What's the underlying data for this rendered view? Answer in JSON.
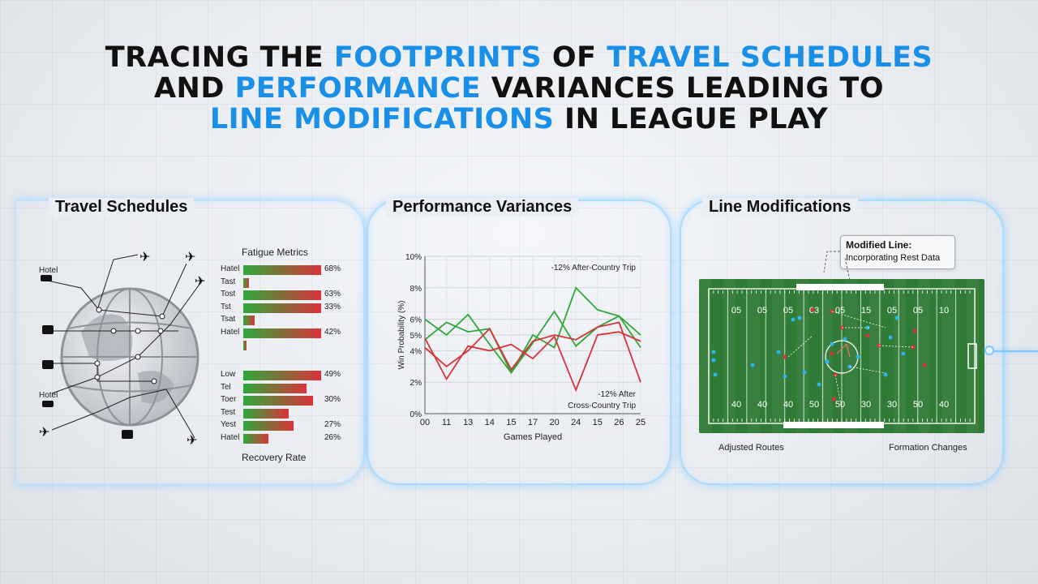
{
  "title": {
    "line1": [
      {
        "t": "TRACING THE ",
        "hl": false
      },
      {
        "t": "FOOTPRINTS",
        "hl": true
      },
      {
        "t": " OF ",
        "hl": false
      },
      {
        "t": "TRAVEL SCHEDULES",
        "hl": true
      }
    ],
    "line2": [
      {
        "t": "AND ",
        "hl": false
      },
      {
        "t": "PERFORMANCE",
        "hl": true
      },
      {
        "t": " VARIANCES LEADING TO",
        "hl": false
      }
    ],
    "line3": [
      {
        "t": "LINE MODIFICATIONS",
        "hl": true
      },
      {
        "t": " IN LEAGUE PLAY",
        "hl": false
      }
    ]
  },
  "colors": {
    "accent": "#1a8fe8",
    "good": "#2fa83a",
    "bad": "#d9333a",
    "field": "#2f7a35"
  },
  "panel1": {
    "heading": "Travel Schedules",
    "icon_labels": [
      "Hotel",
      "Hotel"
    ],
    "fatigue_title": "Fatigue Metrics",
    "recovery_title": "Recovery Rate",
    "fatigue_bars": [
      {
        "label": "Hatel",
        "value": "68%",
        "pct": 0.96
      },
      {
        "label": "Tast",
        "value": "",
        "pct": 0.07
      },
      {
        "label": "Tost",
        "value": "63%",
        "pct": 0.96
      },
      {
        "label": "Tst",
        "value": "33%",
        "pct": 0.96
      },
      {
        "label": "Tsat",
        "value": "",
        "pct": 0.14
      },
      {
        "label": "Hatel",
        "value": "42%",
        "pct": 0.96
      },
      {
        "label": "",
        "value": "",
        "pct": 0.04
      }
    ],
    "recovery_bars": [
      {
        "label": "Low",
        "value": "49%",
        "pct": 0.96
      },
      {
        "label": "Tel",
        "value": "",
        "pct": 0.78
      },
      {
        "label": "Toer",
        "value": "30%",
        "pct": 0.86
      },
      {
        "label": "Test",
        "value": "",
        "pct": 0.56
      },
      {
        "label": "Yest",
        "value": "27%",
        "pct": 0.62
      },
      {
        "label": "Hatel",
        "value": "26%",
        "pct": 0.31
      }
    ]
  },
  "panel2": {
    "heading": "Performance Variances"
  },
  "panel3": {
    "heading": "Line Modifications",
    "callout_title": "Modified Line:",
    "callout_text": "Incorporating Rest Data",
    "label_left": "Adjusted Routes",
    "label_right": "Formation Changes",
    "yard_top": [
      "05",
      "05",
      "05",
      "03",
      "05",
      "15",
      "05",
      "05",
      "10"
    ],
    "yard_bottom": [
      "40",
      "40",
      "40",
      "50",
      "50",
      "30",
      "30",
      "50",
      "40"
    ]
  },
  "chart_data": {
    "type": "line",
    "title": "",
    "xlabel": "Games Played",
    "ylabel": "Win Probability (%)",
    "x": [
      "00",
      "11",
      "13",
      "14",
      "15",
      "17",
      "20",
      "24",
      "15",
      "26",
      "25"
    ],
    "ylim": [
      0,
      10
    ],
    "yticks": [
      "0%",
      "2%",
      "4%",
      "5%",
      "6%",
      "8%",
      "10%"
    ],
    "series": [
      {
        "color": "#2fa83a",
        "values": [
          6.0,
          5.0,
          6.3,
          4.4,
          2.6,
          5.0,
          4.2,
          8.0,
          6.6,
          6.2,
          5.0
        ]
      },
      {
        "color": "#2fa83a",
        "values": [
          4.7,
          5.8,
          5.2,
          5.4,
          2.6,
          4.5,
          6.5,
          4.3,
          5.5,
          6.2,
          4.2
        ]
      },
      {
        "color": "#d9333a",
        "values": [
          4.2,
          3.0,
          4.0,
          5.4,
          2.8,
          4.6,
          5.0,
          4.7,
          5.5,
          5.8,
          2.0
        ]
      },
      {
        "color": "#d9333a",
        "values": [
          4.8,
          2.2,
          4.3,
          4.0,
          4.4,
          3.5,
          4.9,
          1.5,
          5.0,
          5.2,
          4.6
        ]
      }
    ],
    "annotations": [
      "-12% After-Country Trip",
      "-12% After",
      "Cross-Country Trip"
    ],
    "grid": true
  }
}
